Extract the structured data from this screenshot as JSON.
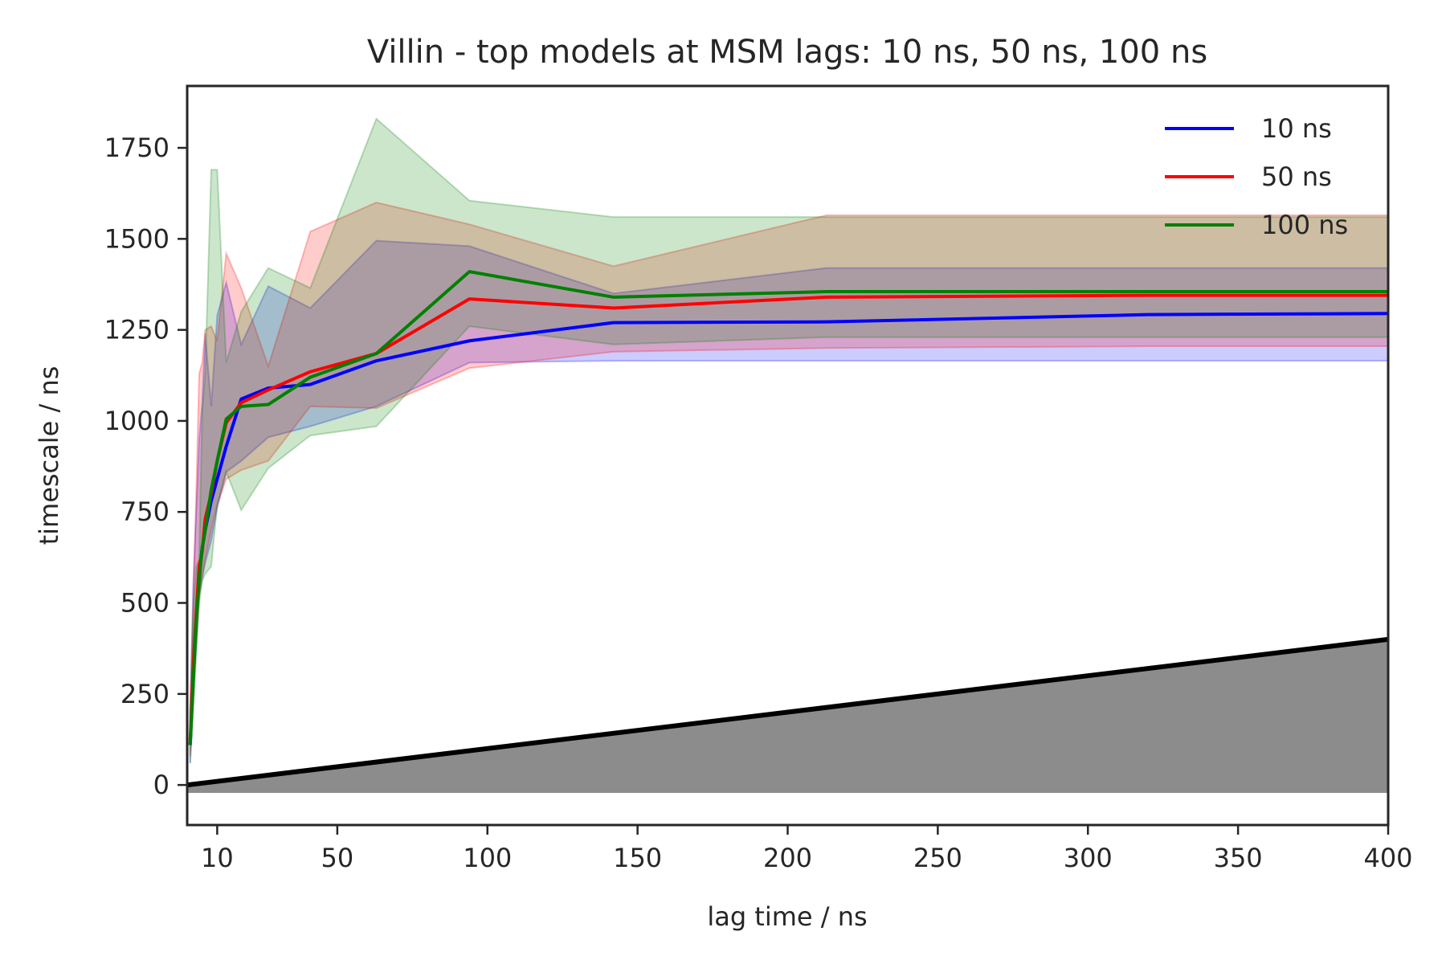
{
  "chart_data": {
    "type": "line",
    "title": "Villin - top models at MSM lags: 10 ns, 50 ns, 100 ns",
    "xlabel": "lag time / ns",
    "ylabel": "timescale / ns",
    "xlim": [
      0,
      400
    ],
    "ylim": [
      -110,
      1920
    ],
    "xticks": [
      10,
      50,
      100,
      150,
      200,
      250,
      300,
      350,
      400
    ],
    "yticks": [
      0,
      250,
      500,
      750,
      1000,
      1250,
      1500,
      1750
    ],
    "grid": false,
    "legend_position": "top-right",
    "series": [
      {
        "name": "10 ns",
        "color": "#0000ff",
        "x": [
          1,
          2,
          3,
          4,
          5,
          6,
          8,
          10,
          13,
          18,
          27,
          41,
          63,
          94,
          142,
          213,
          320,
          400
        ],
        "y": [
          110,
          300,
          460,
          580,
          650,
          700,
          780,
          840,
          930,
          1060,
          1090,
          1100,
          1165,
          1220,
          1270,
          1272,
          1292,
          1295
        ],
        "band_lower": [
          60,
          250,
          380,
          520,
          570,
          610,
          670,
          760,
          860,
          890,
          955,
          985,
          1040,
          1160,
          1165,
          1165,
          1165,
          1165
        ],
        "band_upper": [
          200,
          550,
          750,
          950,
          1050,
          1240,
          1040,
          1290,
          1380,
          1210,
          1370,
          1310,
          1495,
          1480,
          1350,
          1420,
          1420,
          1420
        ]
      },
      {
        "name": "50 ns",
        "color": "#ff0000",
        "x": [
          1,
          2,
          3,
          4,
          5,
          6,
          8,
          10,
          13,
          18,
          27,
          41,
          63,
          94,
          142,
          213,
          320,
          400
        ],
        "y": [
          120,
          320,
          470,
          600,
          640,
          730,
          800,
          890,
          995,
          1050,
          1085,
          1135,
          1185,
          1335,
          1310,
          1340,
          1345,
          1345
        ],
        "band_lower": [
          80,
          260,
          400,
          520,
          570,
          620,
          700,
          770,
          840,
          865,
          890,
          1040,
          1035,
          1145,
          1190,
          1200,
          1205,
          1205
        ],
        "band_upper": [
          200,
          500,
          800,
          1130,
          1160,
          1250,
          1260,
          1220,
          1460,
          1365,
          1150,
          1520,
          1600,
          1540,
          1425,
          1565,
          1565,
          1565
        ]
      },
      {
        "name": "100 ns",
        "color": "#008000",
        "x": [
          1,
          2,
          3,
          4,
          5,
          6,
          8,
          10,
          13,
          18,
          27,
          41,
          63,
          94,
          142,
          213,
          320,
          400
        ],
        "y": [
          110,
          280,
          450,
          560,
          650,
          700,
          810,
          890,
          1005,
          1040,
          1045,
          1120,
          1185,
          1410,
          1340,
          1355,
          1355,
          1355
        ],
        "band_lower": [
          60,
          200,
          350,
          500,
          560,
          580,
          600,
          770,
          860,
          755,
          870,
          960,
          985,
          1260,
          1210,
          1230,
          1230,
          1230
        ],
        "band_upper": [
          200,
          480,
          600,
          620,
          1020,
          1130,
          1690,
          1690,
          1160,
          1300,
          1420,
          1365,
          1830,
          1605,
          1560,
          1560,
          1560,
          1560
        ]
      }
    ],
    "reference": {
      "description": "",
      "color": "#000000",
      "x": [
        0,
        400
      ],
      "y": [
        0,
        400
      ]
    }
  }
}
